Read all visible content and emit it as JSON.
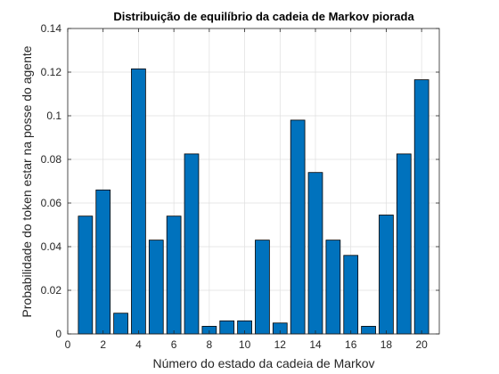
{
  "chart_data": {
    "type": "bar",
    "title": "Distribuição de equilíbrio da cadeia de Markov piorada",
    "xlabel": "Número do estado da cadeia de Markov",
    "ylabel": "Probabilidade do token estar na posse do agente",
    "x": [
      1,
      2,
      3,
      4,
      5,
      6,
      7,
      8,
      9,
      10,
      11,
      12,
      13,
      14,
      15,
      16,
      17,
      18,
      19,
      20
    ],
    "values": [
      0.054,
      0.066,
      0.0095,
      0.1215,
      0.043,
      0.054,
      0.0825,
      0.0035,
      0.006,
      0.006,
      0.043,
      0.005,
      0.098,
      0.074,
      0.043,
      0.036,
      0.0035,
      0.0545,
      0.0825,
      0.1165
    ],
    "xlim": [
      0,
      21
    ],
    "ylim": [
      0,
      0.14
    ],
    "xticks": [
      "0",
      "2",
      "4",
      "6",
      "8",
      "10",
      "12",
      "14",
      "16",
      "18",
      "20"
    ],
    "yticks": [
      "0",
      "0.02",
      "0.04",
      "0.06",
      "0.08",
      "0.1",
      "0.12",
      "0.14"
    ],
    "grid": true,
    "legend": "none",
    "bar_color": "#0072BD",
    "bar_edge_color": "#000000"
  }
}
